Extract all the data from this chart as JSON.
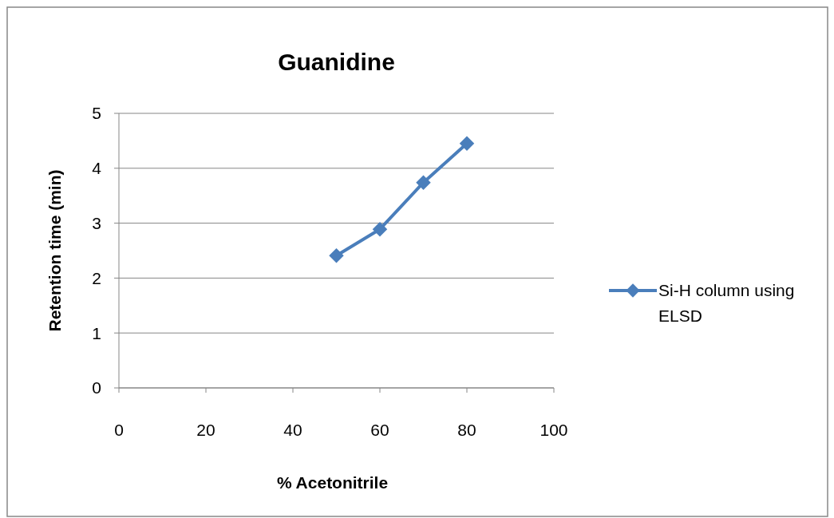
{
  "chart_data": {
    "type": "line",
    "title": "Guanidine",
    "xlabel": "% Acetonitrile",
    "ylabel": "Retention time (min)",
    "x": [
      50,
      60,
      70,
      80
    ],
    "series": [
      {
        "name": "Si-H column using ELSD",
        "color": "#4a7ebb",
        "values": [
          2.41,
          2.89,
          3.74,
          4.45
        ]
      }
    ],
    "xlim": [
      0,
      100
    ],
    "xticks": [
      0,
      20,
      40,
      60,
      80,
      100
    ],
    "ylim": [
      0,
      5
    ],
    "yticks": [
      0,
      1,
      2,
      3,
      4,
      5
    ],
    "grid": "y",
    "legend": "right",
    "marker": "diamond",
    "line_style": "solid"
  }
}
